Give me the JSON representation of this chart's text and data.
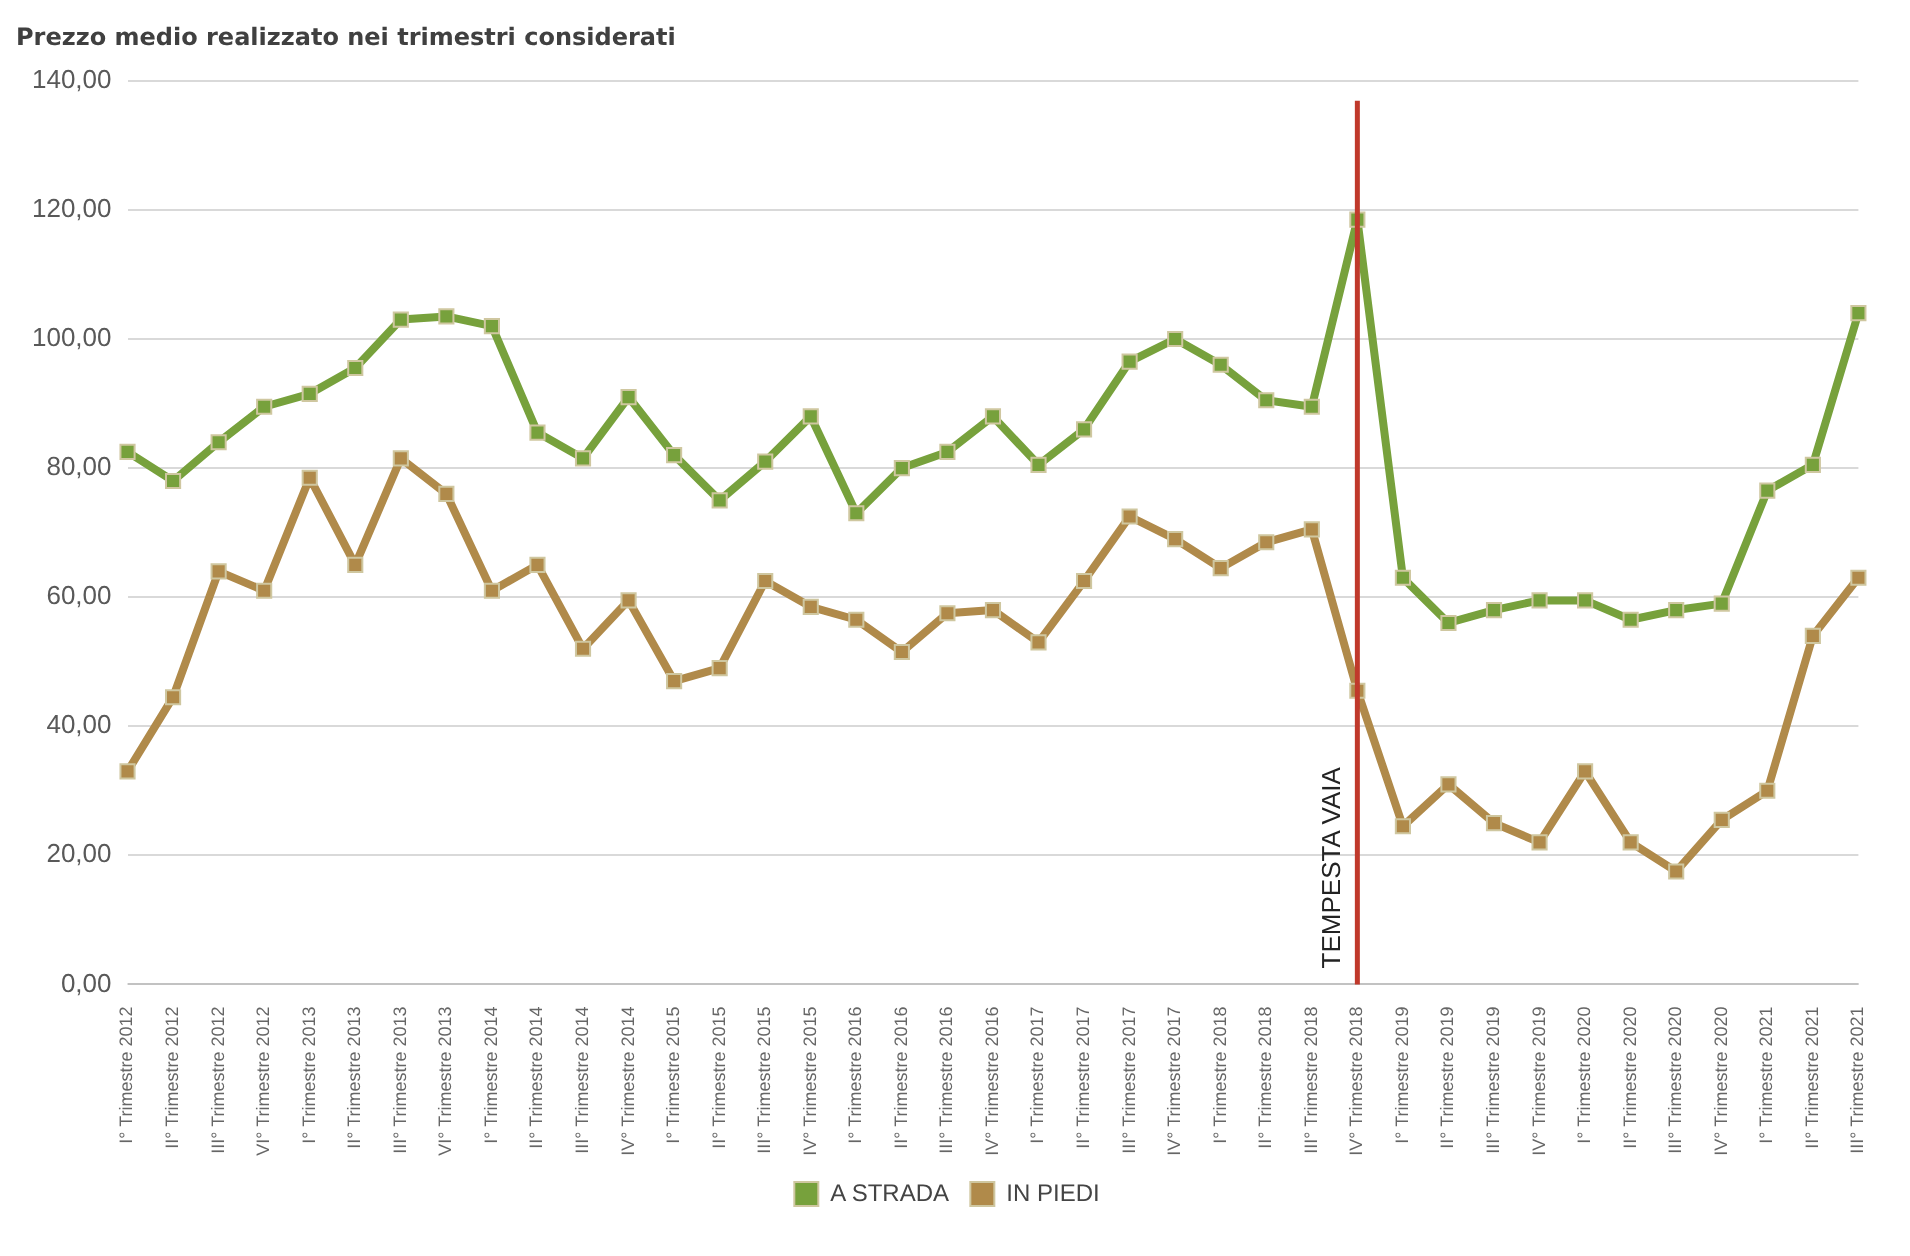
{
  "chart_data": {
    "type": "line",
    "title": "Prezzo medio realizzato nei trimestri considerati",
    "categories": [
      "I° Trimestre 2012",
      "II° Trimestre 2012",
      "III° Trimestre 2012",
      "VI° Trimestre 2012",
      "I° Trimestre 2013",
      "II° Trimestre 2013",
      "III° Trimestre 2013",
      "VI° Trimestre 2013",
      "I° Trimestre 2014",
      "II° Trimestre 2014",
      "III° Trimestre 2014",
      "IV° Trimestre 2014",
      "I° Trimestre 2015",
      "II° Trimestre 2015",
      "III° Trimestre 2015",
      "IV° Trimestre 2015",
      "I° Trimestre 2016",
      "II° Trimestre 2016",
      "III° Trimestre 2016",
      "IV° Trimestre 2016",
      "I° Trimestre 2017",
      "II° Trimestre 2017",
      "III° Trimestre 2017",
      "IV° Trimestre 2017",
      "I° Trimestre 2018",
      "II° Trimestre 2018",
      "III° Trimestre 2018",
      "IV° Trimestre 2018",
      "I° Trimestre 2019",
      "II° Trimestre 2019",
      "III° Trimestre 2019",
      "IV° Trimestre 2019",
      "I° Trimestre 2020",
      "II° Trimestre 2020",
      "III° Trimestre 2020",
      "IV° Trimestre 2020",
      "I° Trimestre 2021",
      "II° Trimestre 2021",
      "III° Trimestre 2021"
    ],
    "series": [
      {
        "name": "A STRADA",
        "color": "#77a13c",
        "values": [
          82.5,
          78,
          84,
          89.5,
          91.5,
          95.5,
          103,
          103.5,
          102,
          85.5,
          81.5,
          91,
          82,
          75,
          81,
          88,
          73,
          80,
          82.5,
          88,
          80.5,
          86,
          96.5,
          100,
          96,
          90.5,
          89.5,
          118.5,
          63,
          56,
          58,
          59.5,
          59.5,
          56.5,
          58,
          59,
          76.5,
          80.5,
          104
        ]
      },
      {
        "name": "IN PIEDI",
        "color": "#b08a4a",
        "values": [
          33,
          44.5,
          64,
          61,
          78.5,
          65,
          81.5,
          76,
          61,
          65,
          52,
          59.5,
          47,
          49,
          62.5,
          58.5,
          56.5,
          51.5,
          57.5,
          58,
          53,
          62.5,
          72.5,
          69,
          64.5,
          68.5,
          70.5,
          45.5,
          24.5,
          31,
          25,
          22,
          33,
          22,
          17.5,
          25.5,
          30,
          54,
          63
        ]
      }
    ],
    "ylim": [
      0,
      140
    ],
    "yticks": [
      {
        "value": 0,
        "label": "0,00"
      },
      {
        "value": 20,
        "label": "20,00"
      },
      {
        "value": 40,
        "label": "40,00"
      },
      {
        "value": 60,
        "label": "60,00"
      },
      {
        "value": 80,
        "label": "80,00"
      },
      {
        "value": 100,
        "label": "100,00"
      },
      {
        "value": 120,
        "label": "120,00"
      },
      {
        "value": 140,
        "label": "140,00"
      }
    ],
    "ref_lines": [
      {
        "axis": "x",
        "value": "IV° Trimestre 2018",
        "label": "TEMPESTA VAIA",
        "color": "#c0392b"
      }
    ],
    "grid": "y",
    "legend": "bottom",
    "marker": "square",
    "line_style": "solid"
  }
}
